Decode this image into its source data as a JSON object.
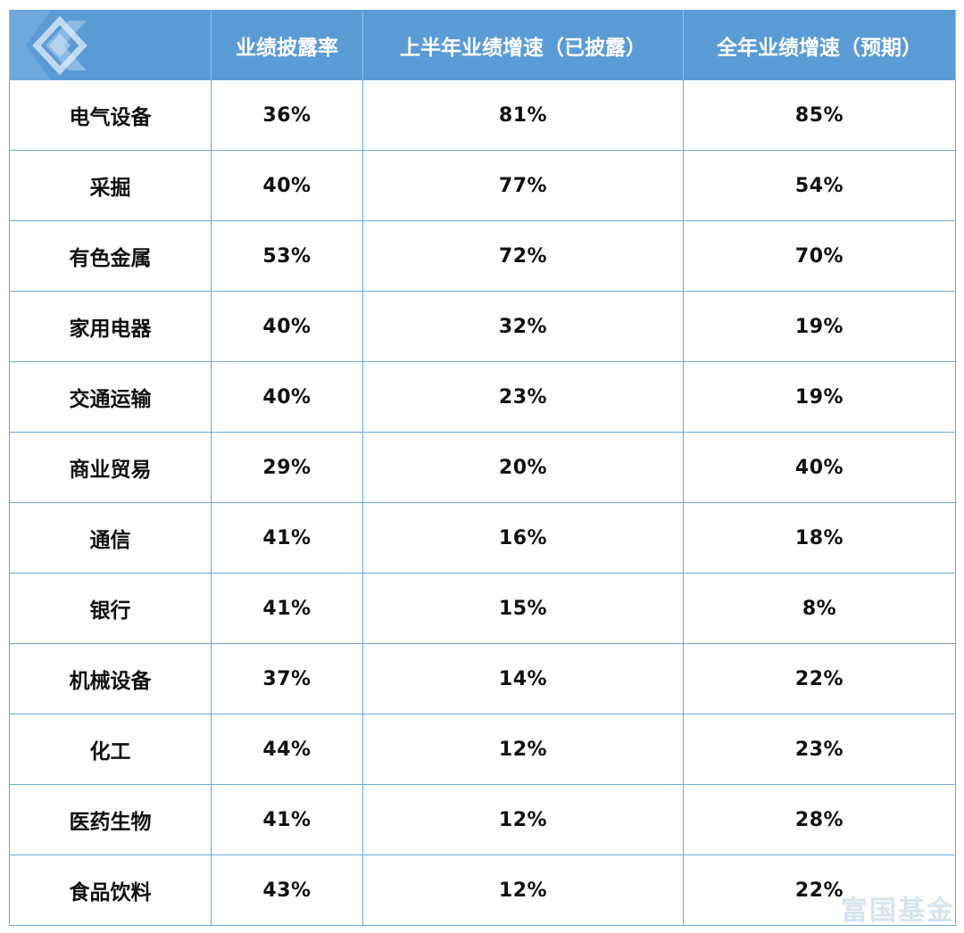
{
  "colors": {
    "header_bg": "#5b9bd5",
    "header_text": "#ffffff",
    "grid_line": "#6fa8dc",
    "watermark": "#b4cde6"
  },
  "watermark_text": "富国基金",
  "chart_data": {
    "type": "table",
    "columns": [
      "",
      "业绩披露率",
      "上半年业绩增速（已披露）",
      "全年业绩增速（预期）"
    ],
    "rows": [
      [
        "电气设备",
        "36%",
        "81%",
        "85%"
      ],
      [
        "采掘",
        "40%",
        "77%",
        "54%"
      ],
      [
        "有色金属",
        "53%",
        "72%",
        "70%"
      ],
      [
        "家用电器",
        "40%",
        "32%",
        "19%"
      ],
      [
        "交通运输",
        "40%",
        "23%",
        "19%"
      ],
      [
        "商业贸易",
        "29%",
        "20%",
        "40%"
      ],
      [
        "通信",
        "41%",
        "16%",
        "18%"
      ],
      [
        "银行",
        "41%",
        "15%",
        "8%"
      ],
      [
        "机械设备",
        "37%",
        "14%",
        "22%"
      ],
      [
        "化工",
        "44%",
        "12%",
        "23%"
      ],
      [
        "医药生物",
        "41%",
        "12%",
        "28%"
      ],
      [
        "食品饮料",
        "43%",
        "12%",
        "22%"
      ]
    ]
  }
}
